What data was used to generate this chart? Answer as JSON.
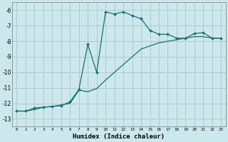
{
  "xlabel": "Humidex (Indice chaleur)",
  "background_color": "#cce8ec",
  "grid_color": "#aacccc",
  "line_color": "#1a6e6e",
  "curve1_x": [
    0,
    1,
    2,
    3,
    4,
    5,
    6,
    7,
    8,
    9,
    10,
    11,
    12,
    13,
    14,
    15,
    16,
    17,
    18,
    19,
    20,
    21,
    22,
    23
  ],
  "curve1_y": [
    -12.5,
    -12.5,
    -12.3,
    -12.25,
    -12.2,
    -12.15,
    -11.9,
    -11.1,
    -8.2,
    -10.0,
    -6.1,
    -6.25,
    -6.1,
    -6.35,
    -6.55,
    -7.3,
    -7.55,
    -7.55,
    -7.8,
    -7.8,
    -7.5,
    -7.45,
    -7.8,
    -7.8
  ],
  "curve2_x": [
    0,
    1,
    2,
    3,
    4,
    5,
    6,
    7,
    8,
    9,
    10,
    11,
    12,
    13,
    14,
    15,
    16,
    17,
    18,
    19,
    20,
    21,
    22,
    23
  ],
  "curve2_y": [
    -12.5,
    -12.5,
    -12.4,
    -12.25,
    -12.2,
    -12.1,
    -12.0,
    -11.15,
    -11.25,
    -11.05,
    -10.5,
    -10.0,
    -9.5,
    -9.0,
    -8.5,
    -8.3,
    -8.1,
    -8.0,
    -7.9,
    -7.8,
    -7.7,
    -7.7,
    -7.8,
    -7.8
  ],
  "ylim": [
    -13.5,
    -5.5
  ],
  "xlim": [
    -0.5,
    23.5
  ],
  "yticks": [
    -13,
    -12,
    -11,
    -10,
    -9,
    -8,
    -7,
    -6
  ],
  "xticks": [
    0,
    1,
    2,
    3,
    4,
    5,
    6,
    7,
    8,
    9,
    10,
    11,
    12,
    13,
    14,
    15,
    16,
    17,
    18,
    19,
    20,
    21,
    22,
    23
  ]
}
